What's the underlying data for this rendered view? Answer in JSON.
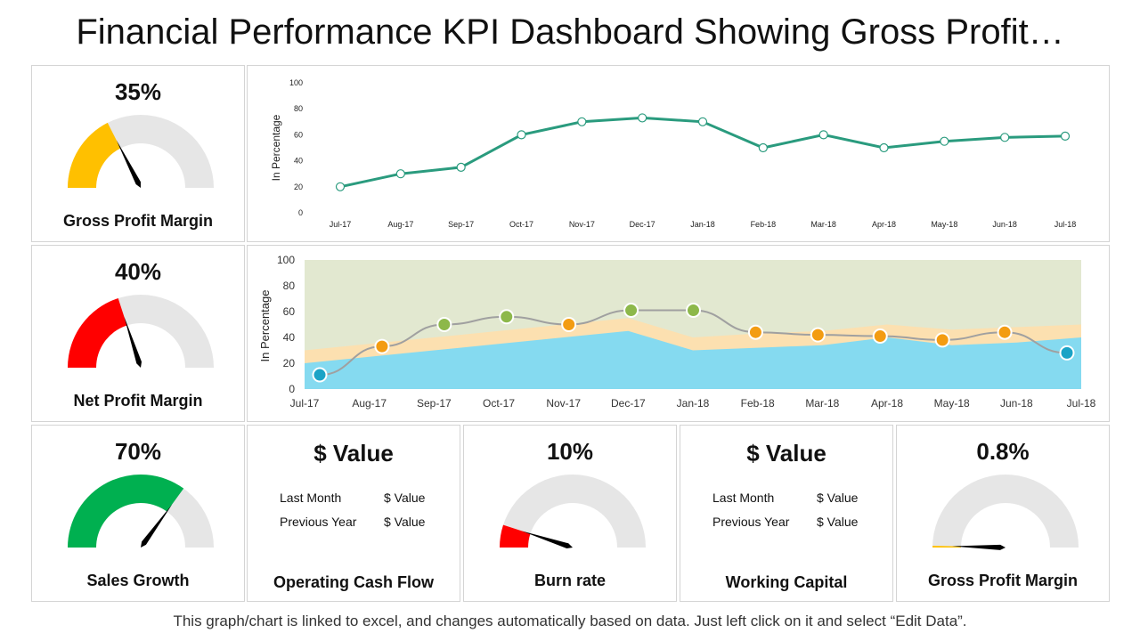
{
  "title": "Financial Performance KPI Dashboard Showing Gross Profit…",
  "footer": "This graph/chart is linked to excel, and changes automatically based on data. Just left click on it and select “Edit Data”.",
  "colors": {
    "yellow": "#FFC000",
    "red": "#FF0000",
    "green": "#00B050",
    "track": "#E6E6E6",
    "line": "#2A9B7E",
    "area_top": "#E2E8D0",
    "area_mid": "#FCE0B0",
    "area_low": "#85DAF0"
  },
  "gauges": [
    {
      "value_label": "35%",
      "value": 35,
      "label": "Gross Profit Margin",
      "color": "#FFC000"
    },
    {
      "value_label": "40%",
      "value": 40,
      "label": "Net Profit Margin",
      "color": "#FF0000"
    },
    {
      "value_label": "70%",
      "value": 70,
      "label": "Sales Growth",
      "color": "#00B050"
    },
    {
      "value_label": "10%",
      "value": 10,
      "label": "Burn rate",
      "color": "#FF0000"
    },
    {
      "value_label": "0.8%",
      "value": 0.8,
      "label": "Gross Profit Margin",
      "color": "#FFC000"
    }
  ],
  "value_cards": [
    {
      "value": "$ Value",
      "label": "Operating Cash Flow",
      "rows": [
        {
          "k": "Last Month",
          "v": "$ Value"
        },
        {
          "k": "Previous Year",
          "v": "$ Value"
        }
      ]
    },
    {
      "value": "$ Value",
      "label": "Working Capital",
      "rows": [
        {
          "k": "Last Month",
          "v": "$ Value"
        },
        {
          "k": "Previous Year",
          "v": "$ Value"
        }
      ]
    }
  ],
  "chart_data": [
    {
      "type": "line",
      "ylabel": "In Percentage",
      "ylim": [
        0,
        100
      ],
      "yticks": [
        0,
        20,
        40,
        60,
        80,
        100
      ],
      "categories": [
        "Jul-17",
        "Aug-17",
        "Sep-17",
        "Oct-17",
        "Nov-17",
        "Dec-17",
        "Jan-18",
        "Feb-18",
        "Mar-18",
        "Apr-18",
        "May-18",
        "Jun-18",
        "Jul-18"
      ],
      "values": [
        20,
        30,
        35,
        60,
        70,
        73,
        70,
        50,
        60,
        50,
        55,
        58,
        59
      ],
      "grid": false
    },
    {
      "type": "area",
      "ylabel": "In Percentage",
      "ylim": [
        0,
        100
      ],
      "yticks": [
        0,
        20,
        40,
        60,
        80,
        100
      ],
      "categories": [
        "Jul-17",
        "Aug-17",
        "Sep-17",
        "Oct-17",
        "Nov-17",
        "Dec-17",
        "Jan-18",
        "Feb-18",
        "Mar-18",
        "Apr-18",
        "May-18",
        "Jun-18",
        "Jul-18"
      ],
      "series": [
        {
          "values": [
            100,
            100,
            100,
            100,
            100,
            100,
            100,
            100,
            100,
            100,
            100,
            100,
            100
          ],
          "color": "#E2E8D0"
        },
        {
          "values": [
            30,
            35,
            40,
            45,
            50,
            55,
            40,
            43,
            45,
            50,
            46,
            48,
            50
          ],
          "color": "#FCE0B0"
        },
        {
          "values": [
            20,
            25,
            30,
            35,
            40,
            45,
            30,
            32,
            34,
            40,
            34,
            36,
            40
          ],
          "color": "#85DAF0"
        }
      ],
      "line_values": [
        11,
        33,
        50,
        56,
        50,
        61,
        61,
        44,
        42,
        41,
        38,
        44,
        28
      ],
      "point_colors": [
        "#1BA3C6",
        "#F39C12",
        "#8DB84A",
        "#8DB84A",
        "#F39C12",
        "#8DB84A",
        "#8DB84A",
        "#F39C12",
        "#F39C12",
        "#F39C12",
        "#F39C12",
        "#F39C12",
        "#1BA3C6"
      ],
      "grid": false
    }
  ]
}
